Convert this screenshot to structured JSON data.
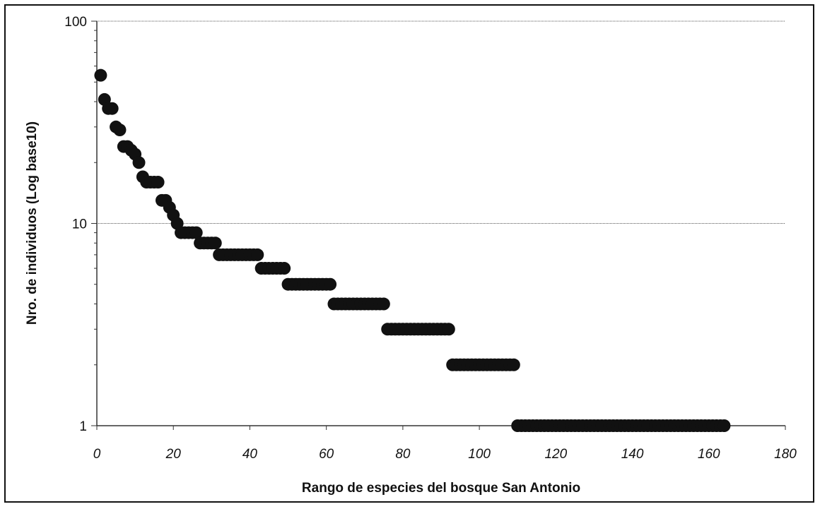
{
  "chart_data": {
    "type": "scatter",
    "title": "",
    "xlabel": "Rango de especies del bosque San Antonio",
    "ylabel": "Nro. de individuos (Log base10)",
    "xlim": [
      0,
      180
    ],
    "ylim": [
      1,
      100
    ],
    "yscale": "log",
    "grid": "horizontal major",
    "legend": "none",
    "marker_color": "#111111",
    "x_ticks": [
      "0",
      "20",
      "40",
      "60",
      "80",
      "100",
      "120",
      "140",
      "160",
      "180"
    ],
    "y_ticks": [
      "1",
      "10",
      "100"
    ],
    "x": [
      1,
      2,
      3,
      4,
      5,
      6,
      7,
      8,
      9,
      10,
      11,
      12,
      13,
      14,
      15,
      16,
      17,
      18,
      19,
      20,
      21,
      22,
      23,
      24,
      25,
      26,
      27,
      28,
      29,
      30,
      31,
      32,
      33,
      34,
      35,
      36,
      37,
      38,
      39,
      40,
      41,
      42,
      43,
      44,
      45,
      46,
      47,
      48,
      49,
      50,
      51,
      52,
      53,
      54,
      55,
      56,
      57,
      58,
      59,
      60,
      61,
      62,
      63,
      64,
      65,
      66,
      67,
      68,
      69,
      70,
      71,
      72,
      73,
      74,
      75,
      76,
      77,
      78,
      79,
      80,
      81,
      82,
      83,
      84,
      85,
      86,
      87,
      88,
      89,
      90,
      91,
      92,
      93,
      94,
      95,
      96,
      97,
      98,
      99,
      100,
      101,
      102,
      103,
      104,
      105,
      106,
      107,
      108,
      109,
      110,
      111,
      112,
      113,
      114,
      115,
      116,
      117,
      118,
      119,
      120,
      121,
      122,
      123,
      124,
      125,
      126,
      127,
      128,
      129,
      130,
      131,
      132,
      133,
      134,
      135,
      136,
      137,
      138,
      139,
      140,
      141,
      142,
      143,
      144,
      145,
      146,
      147,
      148,
      149,
      150,
      151,
      152,
      153,
      154,
      155,
      156,
      157,
      158,
      159,
      160,
      161,
      162,
      163,
      164
    ],
    "y": [
      54,
      41,
      37,
      37,
      30,
      29,
      24,
      24,
      23,
      22,
      20,
      17,
      16,
      16,
      16,
      16,
      13,
      13,
      12,
      11,
      10,
      9,
      9,
      9,
      9,
      9,
      8,
      8,
      8,
      8,
      8,
      7,
      7,
      7,
      7,
      7,
      7,
      7,
      7,
      7,
      7,
      7,
      6,
      6,
      6,
      6,
      6,
      6,
      6,
      5,
      5,
      5,
      5,
      5,
      5,
      5,
      5,
      5,
      5,
      5,
      5,
      4,
      4,
      4,
      4,
      4,
      4,
      4,
      4,
      4,
      4,
      4,
      4,
      4,
      4,
      3,
      3,
      3,
      3,
      3,
      3,
      3,
      3,
      3,
      3,
      3,
      3,
      3,
      3,
      3,
      3,
      3,
      2,
      2,
      2,
      2,
      2,
      2,
      2,
      2,
      2,
      2,
      2,
      2,
      2,
      2,
      2,
      2,
      2,
      1,
      1,
      1,
      1,
      1,
      1,
      1,
      1,
      1,
      1,
      1,
      1,
      1,
      1,
      1,
      1,
      1,
      1,
      1,
      1,
      1,
      1,
      1,
      1,
      1,
      1,
      1,
      1,
      1,
      1,
      1,
      1,
      1,
      1,
      1,
      1,
      1,
      1,
      1,
      1,
      1,
      1,
      1,
      1,
      1,
      1,
      1,
      1,
      1,
      1,
      1,
      1,
      1,
      1,
      1
    ]
  }
}
